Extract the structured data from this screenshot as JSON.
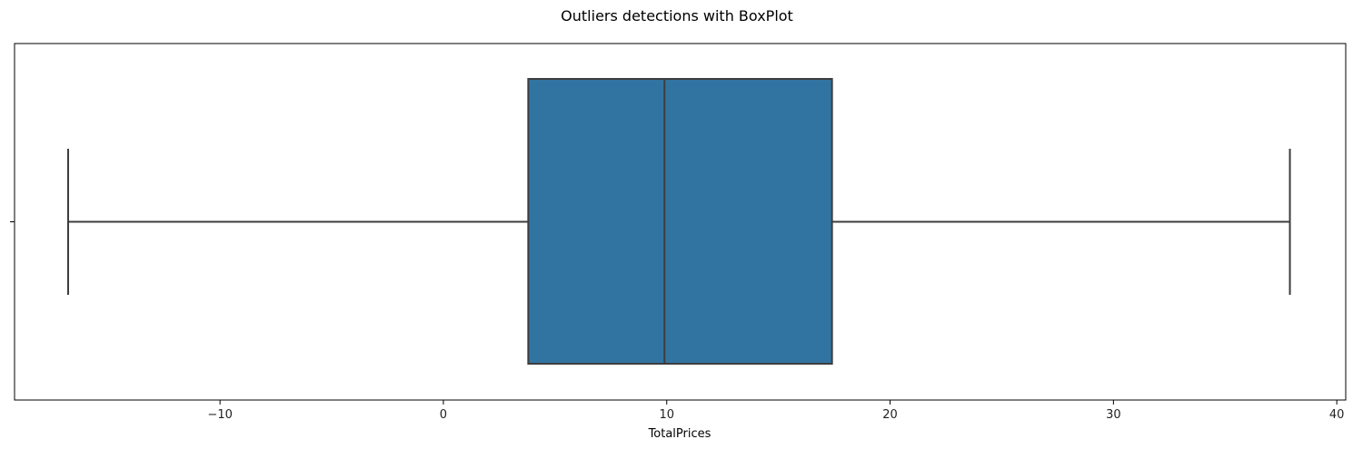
{
  "chart_data": {
    "type": "box",
    "title": "Outliers detections with BoxPlot",
    "xlabel": "TotalPrices",
    "ylabel": "",
    "xlim": [
      -19.2,
      40.4
    ],
    "xticks": [
      -10,
      0,
      10,
      20,
      30,
      40
    ],
    "xtick_labels": [
      "−10",
      "0",
      "10",
      "20",
      "30",
      "40"
    ],
    "grid": false,
    "box": {
      "whisker_low": -16.8,
      "q1": 3.8,
      "median": 9.9,
      "q3": 17.4,
      "whisker_high": 37.9,
      "fill": "#3274a1",
      "line_color": "#3d3d3d"
    }
  }
}
